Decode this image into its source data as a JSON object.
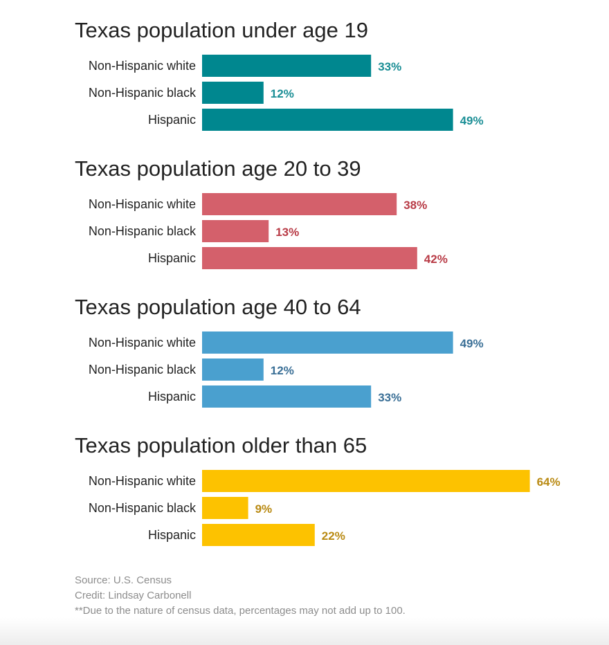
{
  "chart_data": [
    {
      "type": "bar",
      "title": "Texas population under age 19",
      "categories": [
        "Non-Hispanic white",
        "Non-Hispanic black",
        "Hispanic"
      ],
      "values": [
        33,
        12,
        49
      ],
      "value_labels": [
        "33%",
        "12%",
        "49%"
      ],
      "bar_color": "#00878f",
      "label_color": "#1a8e95"
    },
    {
      "type": "bar",
      "title": "Texas population age 20 to 39",
      "categories": [
        "Non-Hispanic white",
        "Non-Hispanic black",
        "Hispanic"
      ],
      "values": [
        38,
        13,
        42
      ],
      "value_labels": [
        "38%",
        "13%",
        "42%"
      ],
      "bar_color": "#d4606b",
      "label_color": "#b83a45"
    },
    {
      "type": "bar",
      "title": "Texas population age 40 to 64",
      "categories": [
        "Non-Hispanic white",
        "Non-Hispanic black",
        "Hispanic"
      ],
      "values": [
        49,
        12,
        33
      ],
      "value_labels": [
        "49%",
        "12%",
        "33%"
      ],
      "bar_color": "#4aa0cf",
      "label_color": "#3a6f96"
    },
    {
      "type": "bar",
      "title": "Texas population older than 65",
      "categories": [
        "Non-Hispanic white",
        "Non-Hispanic black",
        "Hispanic"
      ],
      "values": [
        64,
        9,
        22
      ],
      "value_labels": [
        "64%",
        "9%",
        "22%"
      ],
      "bar_color": "#fdc200",
      "label_color": "#b98a12"
    }
  ],
  "footer": {
    "source": "Source: U.S. Census",
    "credit": "Credit: Lindsay Carbonell",
    "note": "**Due to the nature of census data, percentages may not add up to 100."
  }
}
